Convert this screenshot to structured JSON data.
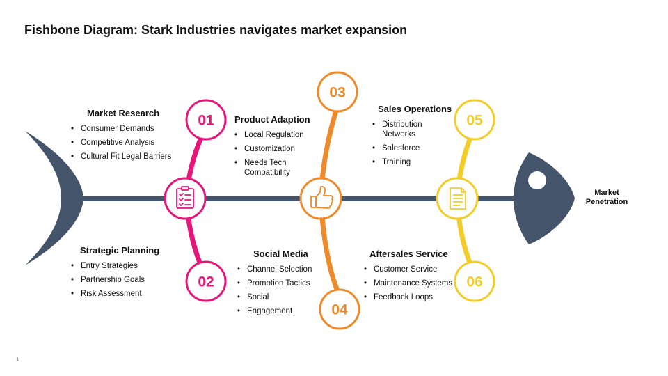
{
  "title": "Fishbone Diagram: Stark Industries navigates market expansion",
  "effect_label": "Market Penetration",
  "page_number": "1",
  "colors": {
    "spine": "#44546a",
    "pink": "#e6157a",
    "orange": "#ee8a2a",
    "yellow": "#f2cd2a"
  },
  "hubs": [
    {
      "icon": "checklist-icon",
      "color": "#e6157a"
    },
    {
      "icon": "thumbs-up-icon",
      "color": "#ee8a2a"
    },
    {
      "icon": "document-icon",
      "color": "#f2cd2a"
    }
  ],
  "causes": [
    {
      "number": "01",
      "heading": "Market Research",
      "items": [
        "Consumer Demands",
        "Competitive Analysis",
        "Cultural Fit Legal Barriers"
      ]
    },
    {
      "number": "02",
      "heading": "Strategic Planning",
      "items": [
        "Entry Strategies",
        "Partnership Goals",
        "Risk Assessment"
      ]
    },
    {
      "number": "03",
      "heading": "Product Adaption",
      "items": [
        "Local Regulation",
        "Customization",
        "Needs Tech Compatibility"
      ]
    },
    {
      "number": "04",
      "heading": "Social Media",
      "items": [
        "Channel Selection",
        "Promotion Tactics",
        "Social",
        "Engagement"
      ]
    },
    {
      "number": "05",
      "heading": "Sales Operations",
      "items": [
        "Distribution Networks",
        "Salesforce",
        "Training"
      ]
    },
    {
      "number": "06",
      "heading": "Aftersales Service",
      "items": [
        "Customer Service",
        "Maintenance Systems",
        "Feedback Loops"
      ]
    }
  ]
}
